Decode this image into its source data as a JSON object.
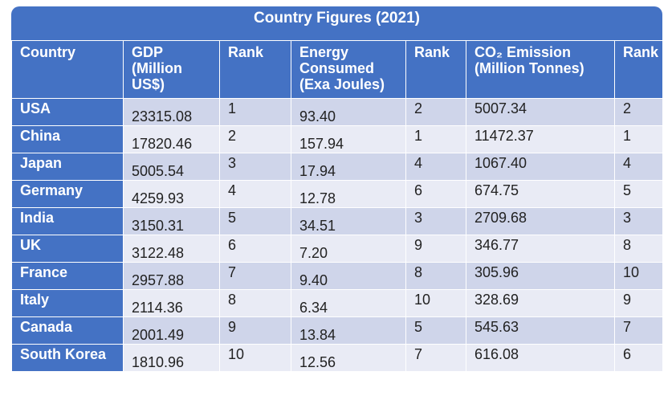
{
  "title": "Country Figures (2021)",
  "table": {
    "header": [
      "Country",
      "GDP (Million US$)",
      "Rank",
      "Energy Consumed (Exa Joules)",
      "Rank",
      "CO₂ Emission (Million Tonnes)",
      "Rank"
    ],
    "rows": [
      [
        "USA",
        "23315.08",
        "1",
        "93.40",
        "2",
        "5007.34",
        "2"
      ],
      [
        "China",
        "17820.46",
        "2",
        "157.94",
        "1",
        "11472.37",
        "1"
      ],
      [
        "Japan",
        "5005.54",
        "3",
        "17.94",
        "4",
        "1067.40",
        "4"
      ],
      [
        "Germany",
        "4259.93",
        "4",
        "12.78",
        "6",
        "674.75",
        "5"
      ],
      [
        "India",
        "3150.31",
        "5",
        "34.51",
        "3",
        "2709.68",
        "3"
      ],
      [
        "UK",
        "3122.48",
        "6",
        "7.20",
        "9",
        "346.77",
        "8"
      ],
      [
        "France",
        "2957.88",
        "7",
        "9.40",
        "8",
        "305.96",
        "10"
      ],
      [
        "Italy",
        "2114.36",
        "8",
        "6.34",
        "10",
        "328.69",
        "9"
      ],
      [
        "Canada",
        "2001.49",
        "9",
        "13.84",
        "5",
        "545.63",
        "7"
      ],
      [
        "South Korea",
        "1810.96",
        "10",
        "12.56",
        "7",
        "616.08",
        "6"
      ]
    ]
  }
}
